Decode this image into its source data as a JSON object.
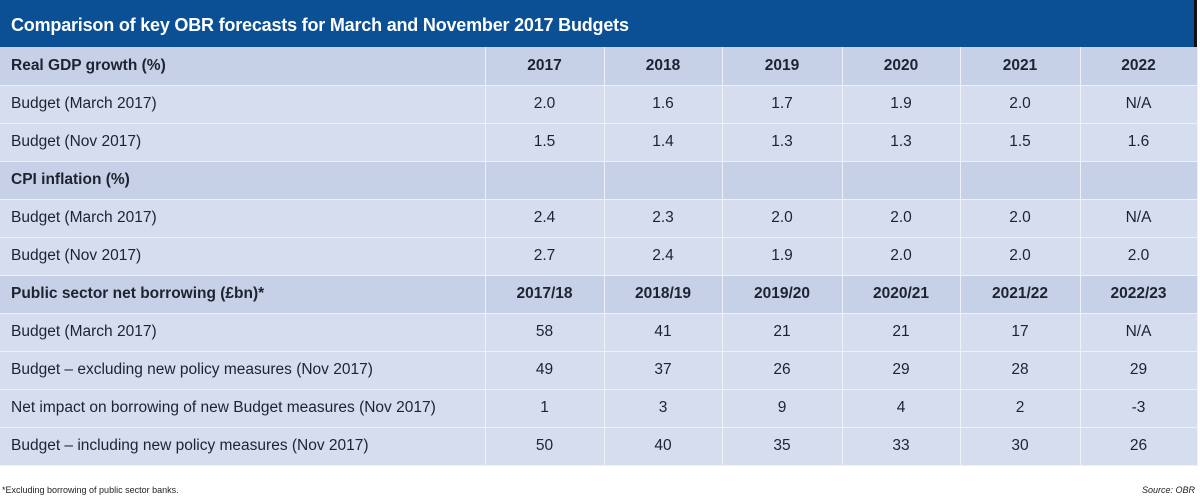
{
  "title": "Comparison of key OBR forecasts for March and November 2017 Budgets",
  "colors": {
    "title_bar": "#0b4f94",
    "section_row": "#c6d0e6",
    "data_row": "#d6ddee",
    "grid_line": "#eef1f8"
  },
  "sections": [
    {
      "heading": "Real GDP growth (%)",
      "columns": [
        "2017",
        "2018",
        "2019",
        "2020",
        "2021",
        "2022"
      ],
      "rows": [
        {
          "label": "Budget (March 2017)",
          "values": [
            "2.0",
            "1.6",
            "1.7",
            "1.9",
            "2.0",
            "N/A"
          ]
        },
        {
          "label": "Budget (Nov 2017)",
          "values": [
            "1.5",
            "1.4",
            "1.3",
            "1.3",
            "1.5",
            "1.6"
          ]
        }
      ]
    },
    {
      "heading": "CPI inflation (%)",
      "columns": [
        "",
        "",
        "",
        "",
        "",
        ""
      ],
      "rows": [
        {
          "label": "Budget (March 2017)",
          "values": [
            "2.4",
            "2.3",
            "2.0",
            "2.0",
            "2.0",
            "N/A"
          ]
        },
        {
          "label": "Budget (Nov 2017)",
          "values": [
            "2.7",
            "2.4",
            "1.9",
            "2.0",
            "2.0",
            "2.0"
          ]
        }
      ]
    },
    {
      "heading": "Public sector net borrowing (£bn)*",
      "columns": [
        "2017/18",
        "2018/19",
        "2019/20",
        "2020/21",
        "2021/22",
        "2022/23"
      ],
      "rows": [
        {
          "label": "Budget (March 2017)",
          "values": [
            "58",
            "41",
            "21",
            "21",
            "17",
            "N/A"
          ]
        },
        {
          "label": "Budget – excluding new policy measures (Nov 2017)",
          "values": [
            "49",
            "37",
            "26",
            "29",
            "28",
            "29"
          ]
        },
        {
          "label": "Net impact on borrowing of new Budget measures (Nov 2017)",
          "values": [
            "1",
            "3",
            "9",
            "4",
            "2",
            "-3"
          ]
        },
        {
          "label": "Budget – including new policy measures (Nov 2017)",
          "values": [
            "50",
            "40",
            "35",
            "33",
            "30",
            "26"
          ]
        }
      ]
    }
  ],
  "footnote": "*Excluding borrowing of public sector banks.",
  "source": "Source: OBR"
}
